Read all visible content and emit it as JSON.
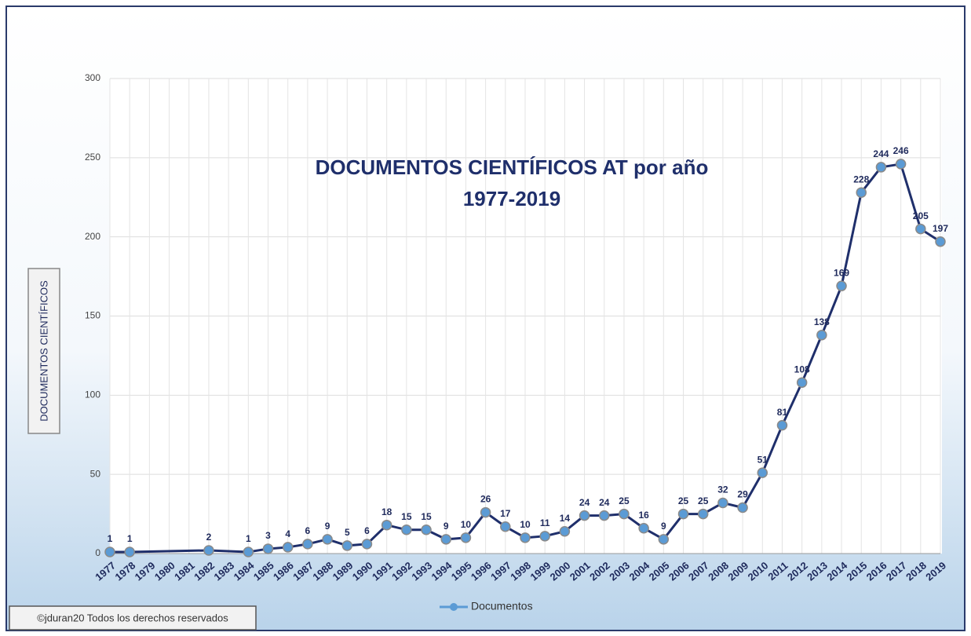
{
  "chart_data": {
    "type": "line",
    "title": "DOCUMENTOS CIENTÍFICOS AT por año",
    "subtitle": "1977-2019",
    "y_label": "DOCUMENTOS CIENTÍFICOS",
    "footer": "©jduran20 Todos los derechos reservados",
    "x": [
      1977,
      1978,
      1982,
      1984,
      1985,
      1986,
      1987,
      1988,
      1989,
      1990,
      1991,
      1992,
      1993,
      1994,
      1995,
      1996,
      1997,
      1998,
      1999,
      2000,
      2001,
      2002,
      2003,
      2004,
      2005,
      2006,
      2007,
      2008,
      2009,
      2010,
      2011,
      2012,
      2013,
      2014,
      2015,
      2016,
      2017,
      2018,
      2019
    ],
    "series": [
      {
        "name": "Documentos",
        "color": "#5b9bd5",
        "line_color": "#1f2f6b",
        "values": [
          1,
          1,
          2,
          1,
          3,
          4,
          6,
          9,
          5,
          6,
          18,
          15,
          15,
          9,
          10,
          26,
          17,
          10,
          11,
          14,
          24,
          24,
          25,
          16,
          9,
          25,
          25,
          32,
          29,
          51,
          81,
          108,
          138,
          169,
          228,
          244,
          246,
          205,
          197
        ]
      }
    ],
    "xlim": [
      1977,
      2019
    ],
    "xticks": [
      1977,
      1978,
      1979,
      1980,
      1981,
      1982,
      1983,
      1984,
      1985,
      1986,
      1987,
      1988,
      1989,
      1990,
      1991,
      1992,
      1993,
      1994,
      1995,
      1996,
      1997,
      1998,
      1999,
      2000,
      2001,
      2002,
      2003,
      2004,
      2005,
      2006,
      2007,
      2008,
      2009,
      2010,
      2011,
      2012,
      2013,
      2014,
      2015,
      2016,
      2017,
      2018,
      2019
    ],
    "ylim": [
      0,
      300
    ],
    "yticks": [
      0,
      50,
      100,
      150,
      200,
      250,
      300
    ],
    "grid": true,
    "legend": "bottom"
  }
}
